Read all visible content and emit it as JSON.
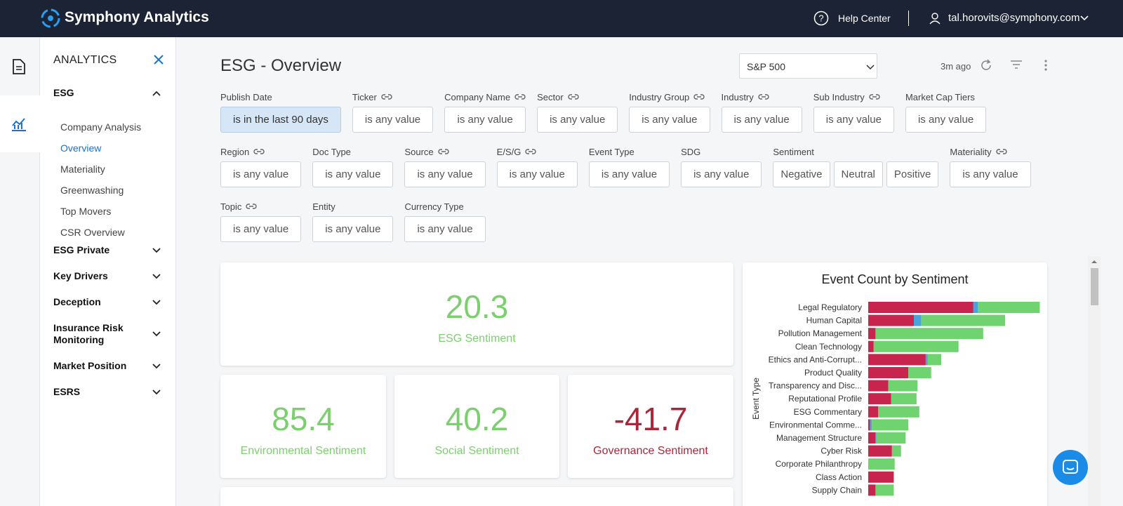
{
  "header": {
    "brand": "Symphony Analytics",
    "help": "Help Center",
    "user": "tal.horovits@symphony.com"
  },
  "sidebar": {
    "section_title": "ANALYTICS",
    "groups": [
      {
        "label": "ESG",
        "expanded": true,
        "items": [
          {
            "label": "Company Analysis",
            "active": false
          },
          {
            "label": "Overview",
            "active": true
          },
          {
            "label": "Materiality",
            "active": false
          },
          {
            "label": "Greenwashing",
            "active": false
          },
          {
            "label": "Top Movers",
            "active": false
          },
          {
            "label": "CSR Overview",
            "active": false
          }
        ]
      },
      {
        "label": "ESG Private",
        "expanded": false,
        "items": []
      },
      {
        "label": "Key Drivers",
        "expanded": false,
        "items": []
      },
      {
        "label": "Deception",
        "expanded": false,
        "items": []
      },
      {
        "label": "Insurance Risk Monitoring",
        "expanded": false,
        "items": []
      },
      {
        "label": "Market Position",
        "expanded": false,
        "items": []
      },
      {
        "label": "ESRS",
        "expanded": false,
        "items": []
      }
    ]
  },
  "page": {
    "title": "ESG - Overview",
    "index_select": "S&P 500",
    "updated": "3m ago"
  },
  "filter_rows": [
    [
      {
        "label": "Publish Date",
        "value": "is in the last 90 days",
        "linked": false,
        "active": true
      },
      {
        "label": "Ticker",
        "value": "is any value",
        "linked": true,
        "active": false
      },
      {
        "label": "Company Name",
        "value": "is any value",
        "linked": true,
        "active": false
      },
      {
        "label": "Sector",
        "value": "is any value",
        "linked": true,
        "active": false
      },
      {
        "label": "Industry Group",
        "value": "is any value",
        "linked": true,
        "active": false
      },
      {
        "label": "Industry",
        "value": "is any value",
        "linked": true,
        "active": false
      },
      {
        "label": "Sub Industry",
        "value": "is any value",
        "linked": true,
        "active": false
      },
      {
        "label": "Market Cap Tiers",
        "value": "is any value",
        "linked": false,
        "active": false
      }
    ],
    [
      {
        "label": "Region",
        "value": "is any value",
        "linked": true,
        "active": false
      },
      {
        "label": "Doc Type",
        "value": "is any value",
        "linked": false,
        "active": false
      },
      {
        "label": "Source",
        "value": "is any value",
        "linked": true,
        "active": false
      },
      {
        "label": "E/S/G",
        "value": "is any value",
        "linked": true,
        "active": false
      },
      {
        "label": "Event Type",
        "value": "is any value",
        "linked": false,
        "active": false
      },
      {
        "label": "SDG",
        "value": "is any value",
        "linked": false,
        "active": false
      },
      {
        "label": "Sentiment",
        "options": [
          "Negative",
          "Neutral",
          "Positive"
        ],
        "linked": false,
        "active": false
      },
      {
        "label": "Materiality",
        "value": "is any value",
        "linked": true,
        "active": false
      }
    ],
    [
      {
        "label": "Topic",
        "value": "is any value",
        "linked": true,
        "active": false
      },
      {
        "label": "Entity",
        "value": "is any value",
        "linked": false,
        "active": false
      },
      {
        "label": "Currency Type",
        "value": "is any value",
        "linked": false,
        "active": false
      }
    ]
  ],
  "kpis": [
    {
      "value": 20.3,
      "label": "ESG Sentiment",
      "color": "#7ccf6e"
    },
    {
      "value": 85.4,
      "label": "Environmental Sentiment",
      "color": "#7ccf6e"
    },
    {
      "value": 40.2,
      "label": "Social Sentiment",
      "color": "#7ccf6e"
    },
    {
      "value": -41.7,
      "label": "Governance Sentiment",
      "color": "#a8283a"
    }
  ],
  "chart_data": {
    "type": "bar",
    "orientation": "horizontal",
    "stacked": true,
    "title": "Event Count by Sentiment",
    "y_label": "Event Type",
    "categories": [
      "Legal Regulatory",
      "Human Capital",
      "Pollution Management",
      "Clean Technology",
      "Ethics and Anti-Corrupt...",
      "Product Quality",
      "Transparency and Disc...",
      "Reputational Profile",
      "ESG Commentary",
      "Environmental Comme...",
      "Management Structure",
      "Cyber Risk",
      "Corporate Philanthropy",
      "Class Action",
      "Supply Chain"
    ],
    "series": [
      {
        "color": "#c7254e",
        "values": [
          115,
          50,
          8,
          6,
          63,
          44,
          22,
          25,
          11,
          2,
          8,
          26,
          0,
          28,
          8
        ]
      },
      {
        "color": "#4aa3df",
        "values": [
          5,
          8,
          0,
          0,
          2,
          0,
          0,
          0,
          0,
          2,
          1,
          0,
          0,
          0,
          0
        ]
      },
      {
        "color": "#6fd46f",
        "values": [
          68,
          92,
          118,
          93,
          15,
          25,
          32,
          28,
          45,
          40,
          32,
          10,
          29,
          0,
          20
        ]
      }
    ],
    "xlim": [
      0,
      190
    ]
  }
}
